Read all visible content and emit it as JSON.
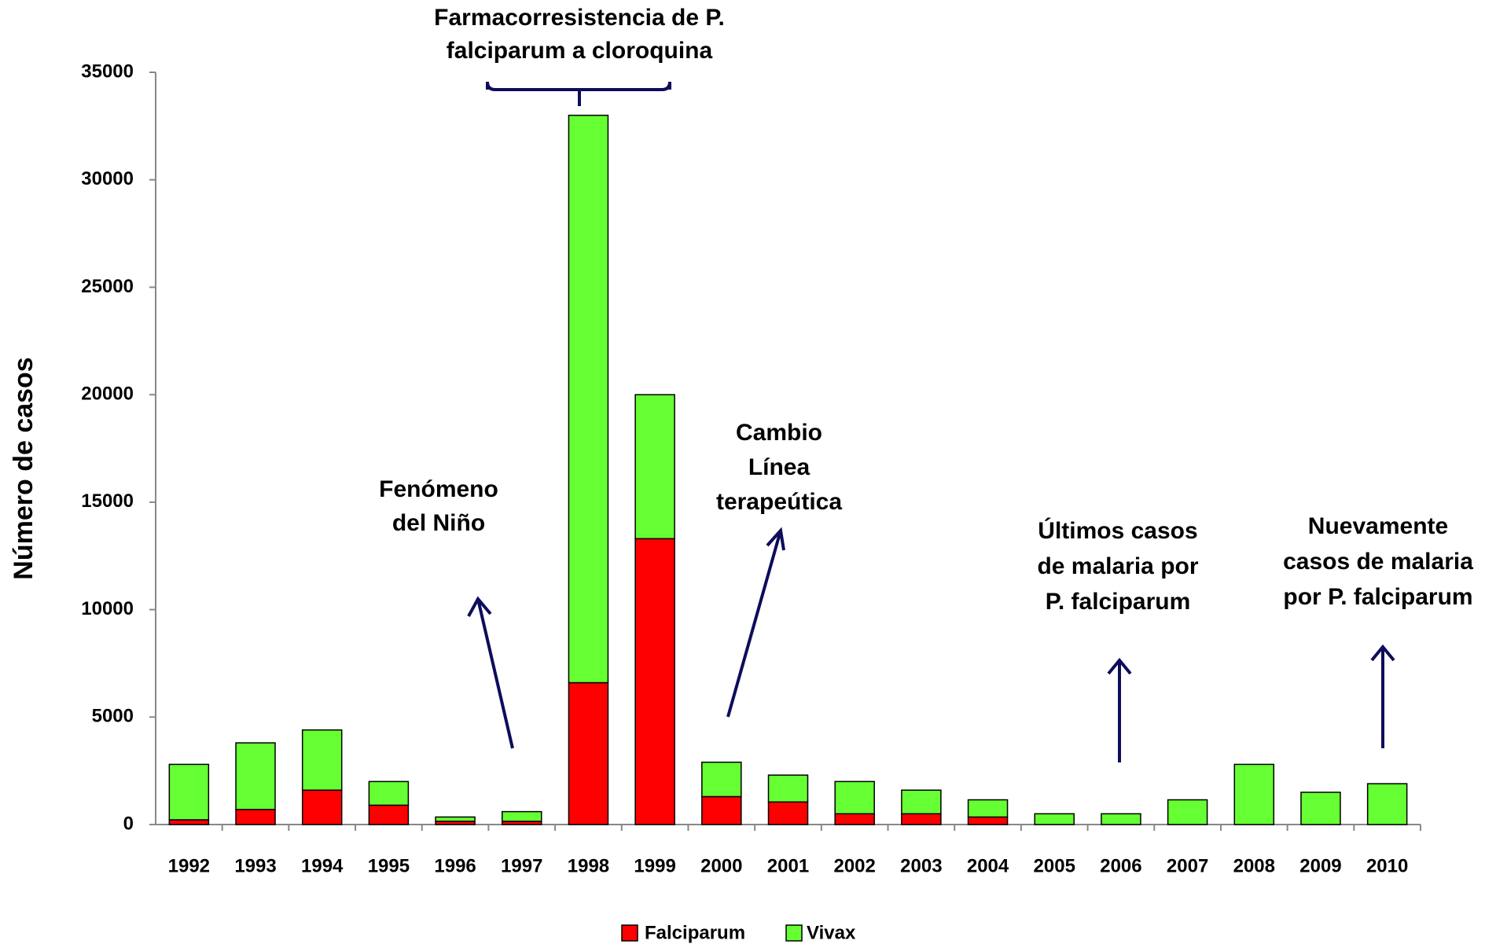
{
  "chart_data": {
    "type": "stacked_bar",
    "y_label": "Número de casos",
    "categories": [
      "1992",
      "1993",
      "1994",
      "1995",
      "1996",
      "1997",
      "1998",
      "1999",
      "2000",
      "2001",
      "2002",
      "2003",
      "2004",
      "2005",
      "2006",
      "2007",
      "2008",
      "2009",
      "2010"
    ],
    "series": [
      {
        "name": "Falciparum",
        "color": "#ff0000",
        "values": [
          220,
          700,
          1600,
          900,
          150,
          150,
          6600,
          13300,
          1300,
          1050,
          500,
          500,
          350,
          0,
          0,
          0,
          0,
          0,
          0
        ]
      },
      {
        "name": "Vivax",
        "color": "#66ff33",
        "values": [
          2580,
          3100,
          2800,
          1100,
          200,
          450,
          26400,
          6700,
          1600,
          1250,
          1500,
          1100,
          800,
          500,
          500,
          1150,
          2800,
          1500,
          1900
        ]
      }
    ],
    "ylim": [
      0,
      35000
    ],
    "yticks": [
      0,
      5000,
      10000,
      15000,
      20000,
      25000,
      30000,
      35000
    ],
    "legend": "bottom",
    "annotations": [
      {
        "lines": [
          "Farmacorresistencia de P.",
          "falciparum a cloroquina"
        ]
      },
      {
        "lines": [
          "Fenómeno",
          "del Niño"
        ]
      },
      {
        "lines": [
          "Cambio",
          "Línea",
          "terapeútica"
        ]
      },
      {
        "lines": [
          "Últimos casos",
          "de malaria por",
          "P. falciparum"
        ]
      },
      {
        "lines": [
          "Nuevamente",
          "casos de malaria",
          "por P. falciparum"
        ]
      }
    ]
  }
}
